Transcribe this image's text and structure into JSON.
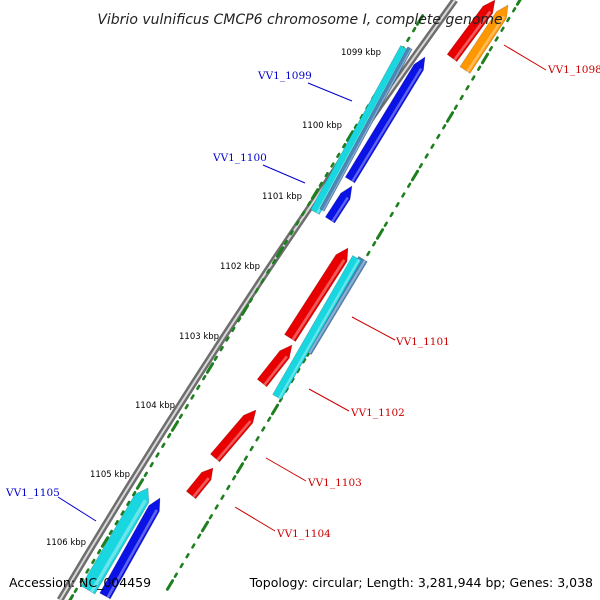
{
  "title": "Vibrio vulnificus CMCP6 chromosome I, complete genome",
  "footer": {
    "accession": "Accession: NC_004459",
    "topology": "Topology: circular; Length: 3,281,944 bp; Genes: 3,038"
  },
  "colors": {
    "backbone": "#8c8c8c",
    "ruler": "#1e7f1e",
    "forward_red": "#e80000",
    "orange": "#ff9800",
    "cyan": "#19d7e0",
    "steel": "#4f86b8",
    "blue": "#0a12e6",
    "red_label": "#cc0000",
    "blue_label": "#0000cc"
  },
  "ruler_labels": [
    "1099 kbp",
    "1100 kbp",
    "1101 kbp",
    "1102 kbp",
    "1103 kbp",
    "1104 kbp",
    "1105 kbp",
    "1106 kbp"
  ],
  "genes": [
    {
      "name": "VV1_1098",
      "color": "red"
    },
    {
      "name": "VV1_1099",
      "color": "blue"
    },
    {
      "name": "VV1_1100",
      "color": "blue"
    },
    {
      "name": "VV1_1101",
      "color": "red"
    },
    {
      "name": "VV1_1102",
      "color": "red"
    },
    {
      "name": "VV1_1103",
      "color": "red"
    },
    {
      "name": "VV1_1104",
      "color": "red"
    },
    {
      "name": "VV1_1105",
      "color": "blue"
    }
  ]
}
